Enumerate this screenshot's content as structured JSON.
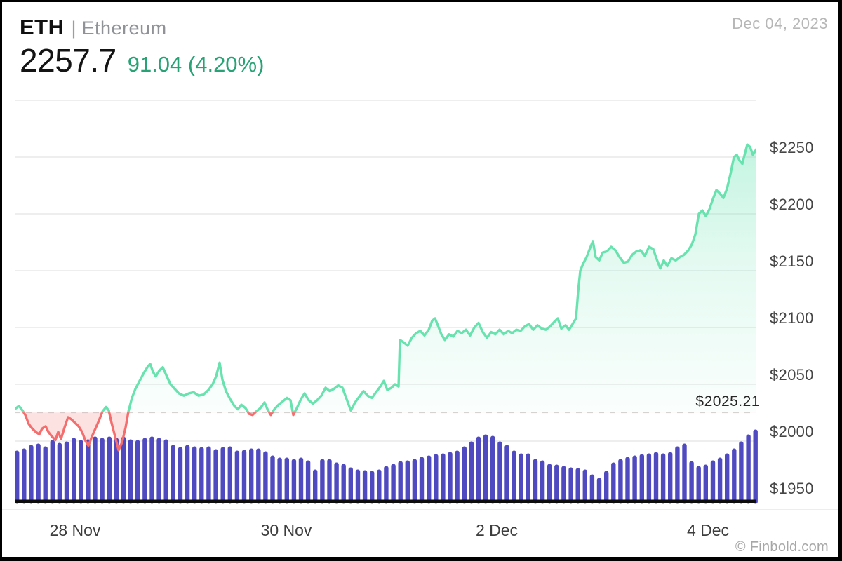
{
  "header": {
    "symbol": "ETH",
    "separator": "|",
    "name": "Ethereum",
    "price": "2257.7",
    "change": "91.04 (4.20%)",
    "date": "Dec 04, 2023"
  },
  "footer": {
    "credit": "© Finbold.com"
  },
  "colors": {
    "price_up_text": "#27a376",
    "line_up": "#68e2ae",
    "line_down": "#f56d6d",
    "fill_up": "#66e3b1",
    "fill_down": "rgba(246,112,112,0.20)",
    "volume_bar": "#504ac0",
    "gridline": "#e9e9e9",
    "baseline_dash": "#d6d6d6",
    "axis_bar": "#0d0d0d"
  },
  "chart_data": {
    "type": "line",
    "title": "ETH/USD price with hourly volume",
    "ylim": [
      1950,
      2300
    ],
    "grid": true,
    "legend": "none",
    "y_axis": {
      "side": "right",
      "tick_labels": [
        "$2250",
        "$2200",
        "$2150",
        "$2100",
        "$2050",
        "$2000",
        "$1950"
      ],
      "tick_values": [
        2250,
        2200,
        2150,
        2100,
        2050,
        2000,
        1950
      ],
      "unlabeled_gridlines": [
        2300
      ]
    },
    "x_axis": {
      "tick_labels": [
        "28 Nov",
        "30 Nov",
        "2 Dec",
        "4 Dec"
      ],
      "tick_x": [
        104,
        405,
        705,
        1006
      ]
    },
    "baseline": {
      "label": "$2025.21",
      "value": 2025.21
    },
    "price_points": [
      [
        18,
        2028
      ],
      [
        24,
        2031
      ],
      [
        29,
        2027
      ],
      [
        33,
        2023
      ],
      [
        38,
        2015
      ],
      [
        43,
        2011
      ],
      [
        48,
        2008
      ],
      [
        53,
        2006
      ],
      [
        57,
        2011
      ],
      [
        62,
        2013
      ],
      [
        66,
        2008
      ],
      [
        71,
        2004
      ],
      [
        76,
        2001
      ],
      [
        80,
        2008
      ],
      [
        84,
        2002
      ],
      [
        89,
        2012
      ],
      [
        94,
        2021
      ],
      [
        99,
        2019
      ],
      [
        104,
        2016
      ],
      [
        109,
        2013
      ],
      [
        114,
        2008
      ],
      [
        119,
        2000
      ],
      [
        123,
        1996
      ],
      [
        128,
        2004
      ],
      [
        133,
        2011
      ],
      [
        138,
        2018
      ],
      [
        143,
        2026
      ],
      [
        148,
        2030
      ],
      [
        152,
        2027
      ],
      [
        156,
        2016
      ],
      [
        161,
        2004
      ],
      [
        166,
        1992
      ],
      [
        171,
        1999
      ],
      [
        176,
        2012
      ],
      [
        180,
        2026
      ],
      [
        185,
        2038
      ],
      [
        190,
        2046
      ],
      [
        196,
        2053
      ],
      [
        202,
        2060
      ],
      [
        207,
        2065
      ],
      [
        211,
        2068
      ],
      [
        215,
        2061
      ],
      [
        219,
        2057
      ],
      [
        224,
        2062
      ],
      [
        229,
        2065
      ],
      [
        234,
        2058
      ],
      [
        240,
        2050
      ],
      [
        246,
        2046
      ],
      [
        252,
        2042
      ],
      [
        259,
        2040
      ],
      [
        266,
        2042
      ],
      [
        273,
        2043
      ],
      [
        280,
        2040
      ],
      [
        287,
        2041
      ],
      [
        294,
        2045
      ],
      [
        300,
        2050
      ],
      [
        305,
        2057
      ],
      [
        310,
        2069
      ],
      [
        314,
        2054
      ],
      [
        319,
        2044
      ],
      [
        325,
        2037
      ],
      [
        331,
        2031
      ],
      [
        336,
        2028
      ],
      [
        341,
        2032
      ],
      [
        347,
        2029
      ],
      [
        352,
        2024
      ],
      [
        357,
        2023
      ],
      [
        362,
        2026
      ],
      [
        368,
        2029
      ],
      [
        374,
        2034
      ],
      [
        379,
        2027
      ],
      [
        383,
        2023
      ],
      [
        388,
        2028
      ],
      [
        394,
        2032
      ],
      [
        400,
        2035
      ],
      [
        406,
        2038
      ],
      [
        411,
        2036
      ],
      [
        415,
        2023
      ],
      [
        420,
        2029
      ],
      [
        426,
        2037
      ],
      [
        431,
        2042
      ],
      [
        437,
        2036
      ],
      [
        443,
        2033
      ],
      [
        449,
        2036
      ],
      [
        455,
        2040
      ],
      [
        461,
        2047
      ],
      [
        467,
        2044
      ],
      [
        473,
        2046
      ],
      [
        479,
        2049
      ],
      [
        485,
        2047
      ],
      [
        491,
        2037
      ],
      [
        497,
        2027
      ],
      [
        503,
        2034
      ],
      [
        509,
        2039
      ],
      [
        515,
        2044
      ],
      [
        521,
        2040
      ],
      [
        527,
        2038
      ],
      [
        533,
        2043
      ],
      [
        539,
        2048
      ],
      [
        544,
        2053
      ],
      [
        549,
        2045
      ],
      [
        555,
        2047
      ],
      [
        560,
        2050
      ],
      [
        565,
        2048
      ],
      [
        567,
        2089
      ],
      [
        572,
        2087
      ],
      [
        578,
        2084
      ],
      [
        584,
        2091
      ],
      [
        590,
        2095
      ],
      [
        596,
        2097
      ],
      [
        602,
        2093
      ],
      [
        608,
        2098
      ],
      [
        613,
        2106
      ],
      [
        617,
        2108
      ],
      [
        621,
        2102
      ],
      [
        626,
        2094
      ],
      [
        631,
        2089
      ],
      [
        637,
        2094
      ],
      [
        643,
        2092
      ],
      [
        649,
        2097
      ],
      [
        655,
        2095
      ],
      [
        661,
        2098
      ],
      [
        667,
        2093
      ],
      [
        673,
        2100
      ],
      [
        679,
        2104
      ],
      [
        685,
        2096
      ],
      [
        691,
        2091
      ],
      [
        697,
        2096
      ],
      [
        703,
        2094
      ],
      [
        709,
        2098
      ],
      [
        715,
        2094
      ],
      [
        721,
        2097
      ],
      [
        727,
        2095
      ],
      [
        733,
        2098
      ],
      [
        739,
        2097
      ],
      [
        745,
        2101
      ],
      [
        751,
        2103
      ],
      [
        757,
        2098
      ],
      [
        763,
        2102
      ],
      [
        769,
        2099
      ],
      [
        775,
        2098
      ],
      [
        781,
        2101
      ],
      [
        787,
        2105
      ],
      [
        792,
        2108
      ],
      [
        797,
        2099
      ],
      [
        803,
        2102
      ],
      [
        808,
        2098
      ],
      [
        813,
        2103
      ],
      [
        818,
        2108
      ],
      [
        821,
        2132
      ],
      [
        824,
        2150
      ],
      [
        828,
        2156
      ],
      [
        833,
        2162
      ],
      [
        838,
        2170
      ],
      [
        842,
        2176
      ],
      [
        846,
        2162
      ],
      [
        851,
        2159
      ],
      [
        856,
        2166
      ],
      [
        862,
        2167
      ],
      [
        868,
        2171
      ],
      [
        874,
        2168
      ],
      [
        880,
        2162
      ],
      [
        886,
        2157
      ],
      [
        892,
        2158
      ],
      [
        898,
        2164
      ],
      [
        904,
        2167
      ],
      [
        910,
        2168
      ],
      [
        916,
        2163
      ],
      [
        922,
        2171
      ],
      [
        928,
        2169
      ],
      [
        933,
        2160
      ],
      [
        938,
        2152
      ],
      [
        943,
        2159
      ],
      [
        948,
        2154
      ],
      [
        954,
        2161
      ],
      [
        960,
        2159
      ],
      [
        966,
        2162
      ],
      [
        972,
        2164
      ],
      [
        978,
        2168
      ],
      [
        983,
        2173
      ],
      [
        988,
        2182
      ],
      [
        993,
        2200
      ],
      [
        998,
        2203
      ],
      [
        1003,
        2198
      ],
      [
        1008,
        2204
      ],
      [
        1013,
        2213
      ],
      [
        1018,
        2221
      ],
      [
        1023,
        2218
      ],
      [
        1028,
        2214
      ],
      [
        1033,
        2222
      ],
      [
        1038,
        2235
      ],
      [
        1043,
        2250
      ],
      [
        1047,
        2252
      ],
      [
        1051,
        2247
      ],
      [
        1055,
        2244
      ],
      [
        1059,
        2254
      ],
      [
        1062,
        2261
      ],
      [
        1066,
        2259
      ],
      [
        1070,
        2252
      ],
      [
        1075,
        2257
      ]
    ],
    "volume_bars": {
      "x_start": 18,
      "pitch": 10.12,
      "bar_width": 6.4,
      "heights": [
        72,
        75,
        80,
        82,
        78,
        87,
        83,
        85,
        90,
        87,
        88,
        92,
        90,
        92,
        90,
        92,
        88,
        87,
        90,
        92,
        90,
        88,
        80,
        77,
        80,
        78,
        77,
        78,
        74,
        77,
        78,
        72,
        73,
        75,
        75,
        71,
        65,
        62,
        62,
        60,
        62,
        58,
        45,
        60,
        60,
        55,
        53,
        48,
        45,
        44,
        43,
        45,
        50,
        53,
        57,
        58,
        60,
        63,
        65,
        67,
        68,
        70,
        72,
        78,
        85,
        92,
        95,
        93,
        85,
        80,
        72,
        68,
        68,
        60,
        58,
        53,
        52,
        50,
        48,
        47,
        45,
        38,
        33,
        43,
        55,
        60,
        63,
        65,
        67,
        68,
        70,
        68,
        70,
        78,
        82,
        57,
        50,
        52,
        58,
        62,
        68,
        75,
        85,
        95,
        102
      ]
    }
  }
}
